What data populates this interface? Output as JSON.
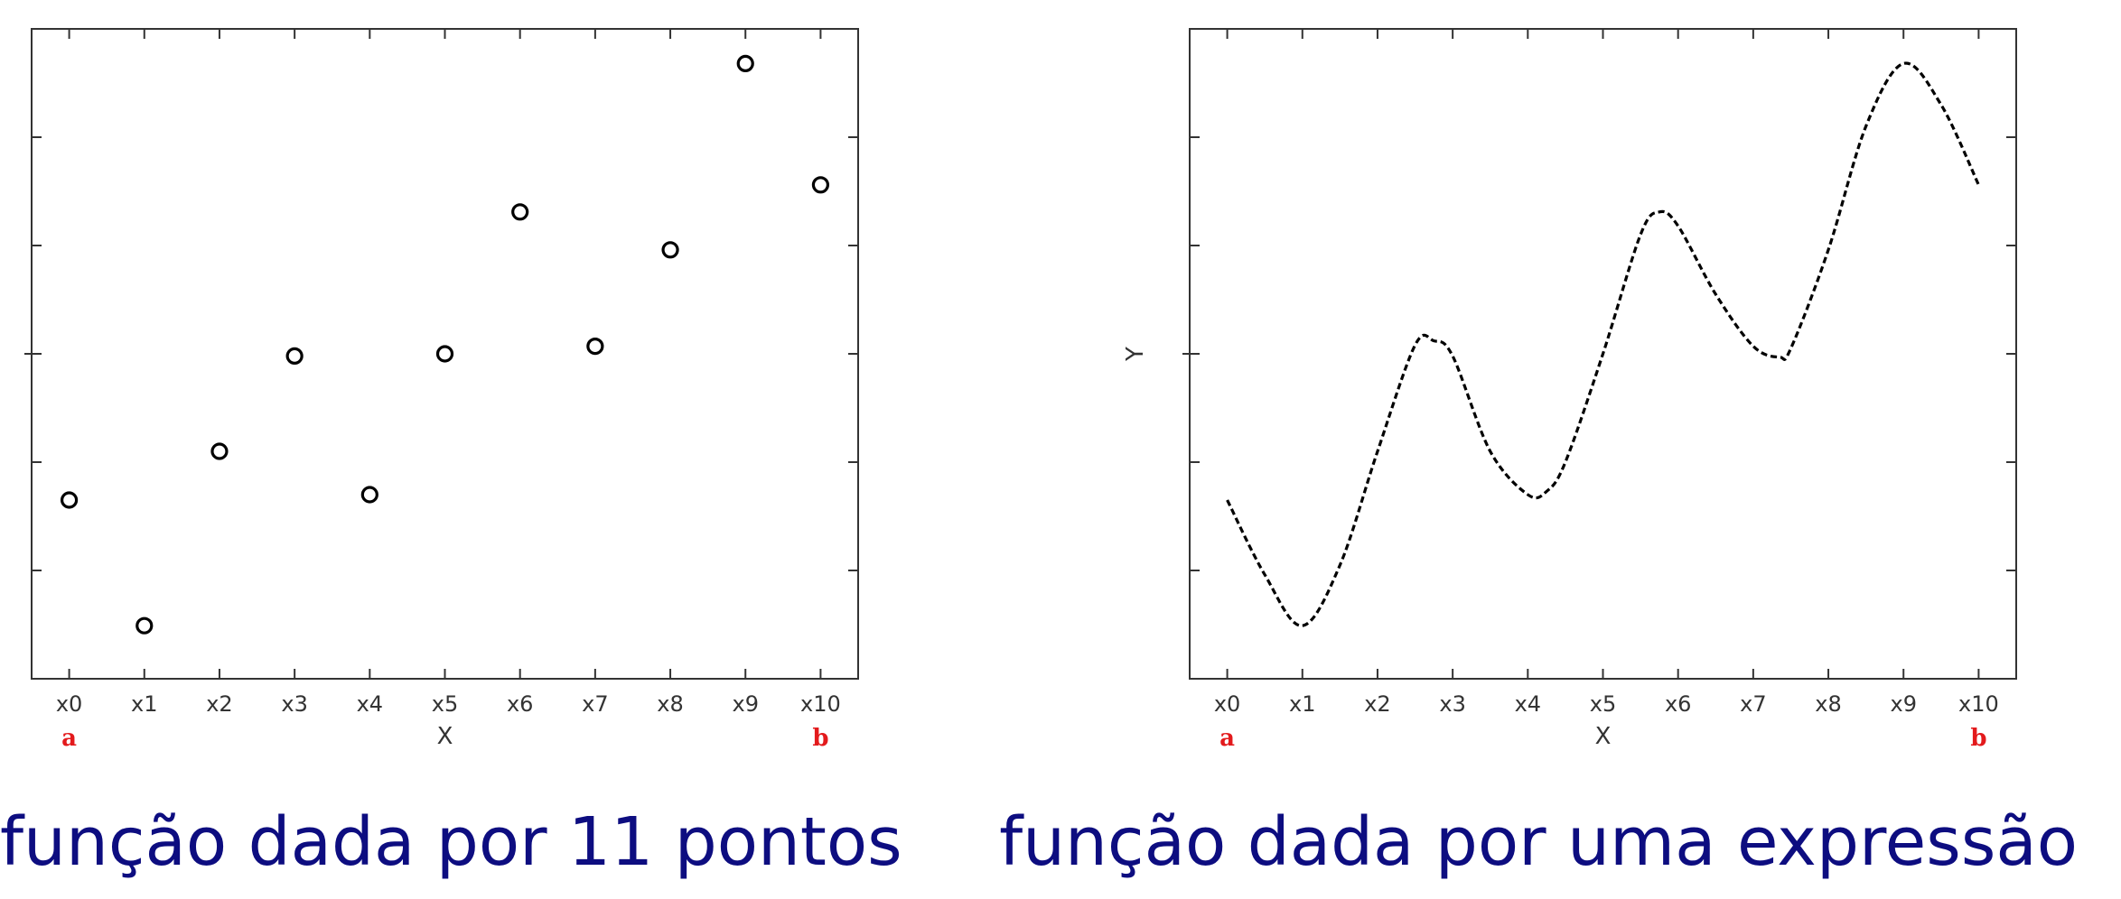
{
  "colors": {
    "marker": "#000000",
    "axis": "#333333",
    "endpoint": "#e31a1c",
    "caption": "#0d0d80"
  },
  "chart_data": [
    {
      "type": "scatter",
      "caption": "função dada por 11 pontos",
      "xticks": [
        "x0",
        "x1",
        "x2",
        "x3",
        "x4",
        "x5",
        "x6",
        "x7",
        "x8",
        "x9",
        "x10"
      ],
      "xlabel": "X",
      "ylabel": "",
      "endpoint_labels": {
        "start": "a",
        "end": "b"
      },
      "xlim": [
        -0.5,
        10.5
      ],
      "ylim": [
        0,
        6
      ],
      "marker": "circle",
      "grid": false,
      "series": [
        {
          "x": [
            0,
            1,
            2,
            3,
            4,
            5,
            6,
            7,
            8,
            9,
            10
          ],
          "y": [
            1.65,
            0.49,
            2.1,
            2.98,
            1.7,
            3.0,
            4.31,
            3.07,
            3.96,
            5.68,
            4.56
          ]
        }
      ]
    },
    {
      "type": "line",
      "caption": "função dada por uma expressão",
      "xticks": [
        "x0",
        "x1",
        "x2",
        "x3",
        "x4",
        "x5",
        "x6",
        "x7",
        "x8",
        "x9",
        "x10"
      ],
      "xlabel": "X",
      "ylabel": "Y",
      "endpoint_labels": {
        "start": "a",
        "end": "b"
      },
      "xlim": [
        -0.5,
        10.5
      ],
      "ylim": [
        0,
        6
      ],
      "line_style": "dashed",
      "grid": false,
      "series": [
        {
          "x": [
            0,
            0.5,
            1,
            1.5,
            2,
            2.5,
            2.75,
            3,
            3.5,
            4,
            4.25,
            4.5,
            5,
            5.5,
            5.75,
            6,
            6.5,
            7,
            7.35,
            7.5,
            8,
            8.5,
            9,
            9.5,
            10
          ],
          "y": [
            1.65,
            0.96,
            0.49,
            1.05,
            2.1,
            3.08,
            3.12,
            2.98,
            2.1,
            1.7,
            1.73,
            2.0,
            3.0,
            4.1,
            4.31,
            4.18,
            3.55,
            3.07,
            2.97,
            3.05,
            3.96,
            5.1,
            5.68,
            5.3,
            4.56
          ]
        }
      ]
    }
  ]
}
